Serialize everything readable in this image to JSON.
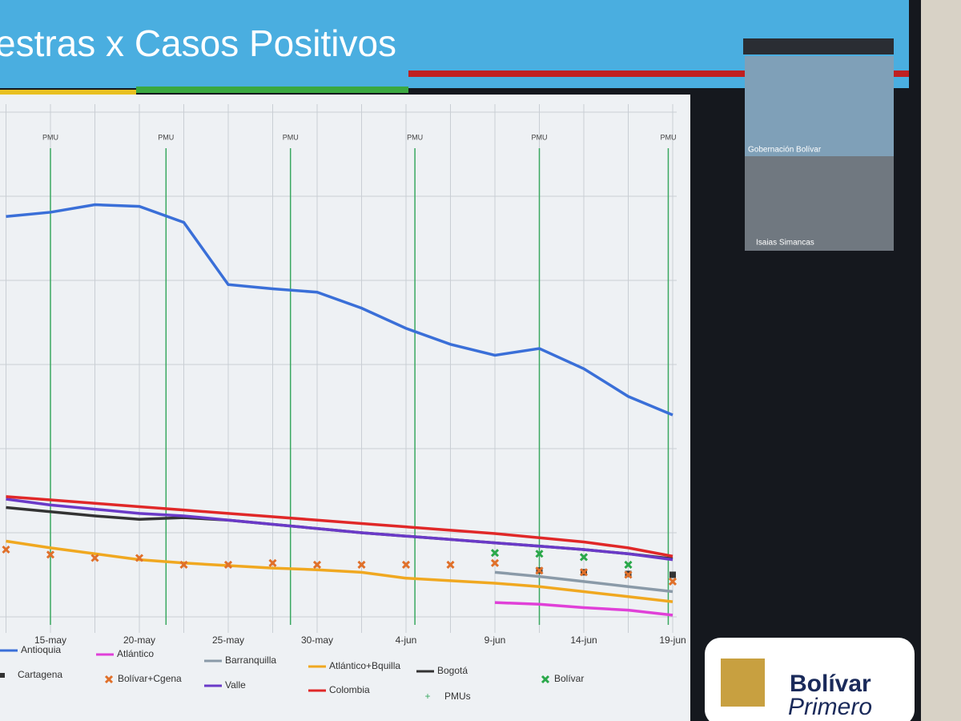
{
  "header": {
    "title": "estras x Casos Positivos"
  },
  "chart_data": {
    "type": "line",
    "categories": [
      null,
      "15-may",
      null,
      "20-may",
      null,
      "25-may",
      null,
      "30-may",
      null,
      "4-jun",
      null,
      "9-jun",
      null,
      "14-jun",
      null,
      "19-jun"
    ],
    "ylim": [
      0,
      60
    ],
    "grid": true,
    "series": [
      {
        "name": "Antioquia",
        "color": "#3a6fd8",
        "style": "line",
        "values": [
          47.6,
          48.1,
          49,
          48.8,
          46.9,
          39.5,
          39,
          38.6,
          36.7,
          34.3,
          32.4,
          31.1,
          31.9,
          29.5,
          26.2,
          24
        ]
      },
      {
        "name": "Atlántico",
        "color": "#e040d8",
        "style": "line",
        "values": [
          null,
          null,
          null,
          null,
          null,
          null,
          null,
          null,
          null,
          null,
          null,
          1.7,
          1.5,
          1.1,
          0.8,
          0.2
        ]
      },
      {
        "name": "Barranquilla",
        "color": "#8a9aa8",
        "style": "line",
        "values": [
          null,
          null,
          null,
          null,
          null,
          null,
          null,
          null,
          null,
          null,
          null,
          5.3,
          4.8,
          4.2,
          3.6,
          3
        ]
      },
      {
        "name": "Atlántico+Bquilla",
        "color": "#f0a820",
        "style": "line",
        "values": [
          9,
          8.2,
          7.5,
          6.8,
          6.4,
          6.1,
          5.8,
          5.6,
          5.3,
          4.6,
          4.3,
          4,
          3.6,
          3,
          2.4,
          1.8
        ]
      },
      {
        "name": "Bogotá",
        "color": "#333333",
        "style": "line",
        "values": [
          13,
          12.5,
          12,
          11.6,
          11.8,
          11.5,
          11,
          10.5,
          10,
          9.6,
          9.2,
          8.8,
          8.4,
          8,
          7.5,
          6.9
        ]
      },
      {
        "name": "Bolívar",
        "color": "#2aa84a",
        "style": "x",
        "values": [
          null,
          null,
          null,
          null,
          null,
          null,
          null,
          null,
          null,
          null,
          null,
          7.6,
          7.5,
          7.1,
          6.2,
          null
        ]
      },
      {
        "name": "Cartagena",
        "color": "#333333",
        "style": "square",
        "values": [
          null,
          null,
          null,
          null,
          null,
          null,
          null,
          null,
          null,
          null,
          null,
          null,
          5.5,
          5.3,
          5.1,
          5
        ]
      },
      {
        "name": "Bolívar+Cgena",
        "color": "#e0702a",
        "style": "x",
        "values": [
          8,
          7.4,
          7,
          7,
          6.2,
          6.2,
          6.4,
          6.2,
          6.2,
          6.2,
          6.2,
          6.4,
          5.5,
          5.3,
          5,
          4.2
        ]
      },
      {
        "name": "Valle",
        "color": "#6a3ac8",
        "style": "line",
        "values": [
          14,
          13.3,
          12.8,
          12.3,
          12,
          11.5,
          11,
          10.5,
          10,
          9.6,
          9.2,
          8.8,
          8.4,
          8,
          7.5,
          6.8
        ]
      },
      {
        "name": "Colombia",
        "color": "#e02828",
        "style": "line",
        "values": [
          14.3,
          13.9,
          13.5,
          13.1,
          12.7,
          12.3,
          11.9,
          11.5,
          11.1,
          10.7,
          10.3,
          9.9,
          9.4,
          8.9,
          8.2,
          7.2
        ]
      }
    ],
    "pmus": {
      "name": "PMUs",
      "label": "PMU",
      "color": "#3aa860",
      "positions": [
        1,
        3.6,
        6.4,
        9.2,
        12,
        14.9
      ]
    }
  },
  "video_tiles": [
    {
      "name": "Gobernación Bolívar"
    },
    {
      "name": "Isaias Simancas"
    }
  ],
  "logo": {
    "line1": "Bolívar",
    "line2": "Primero"
  }
}
